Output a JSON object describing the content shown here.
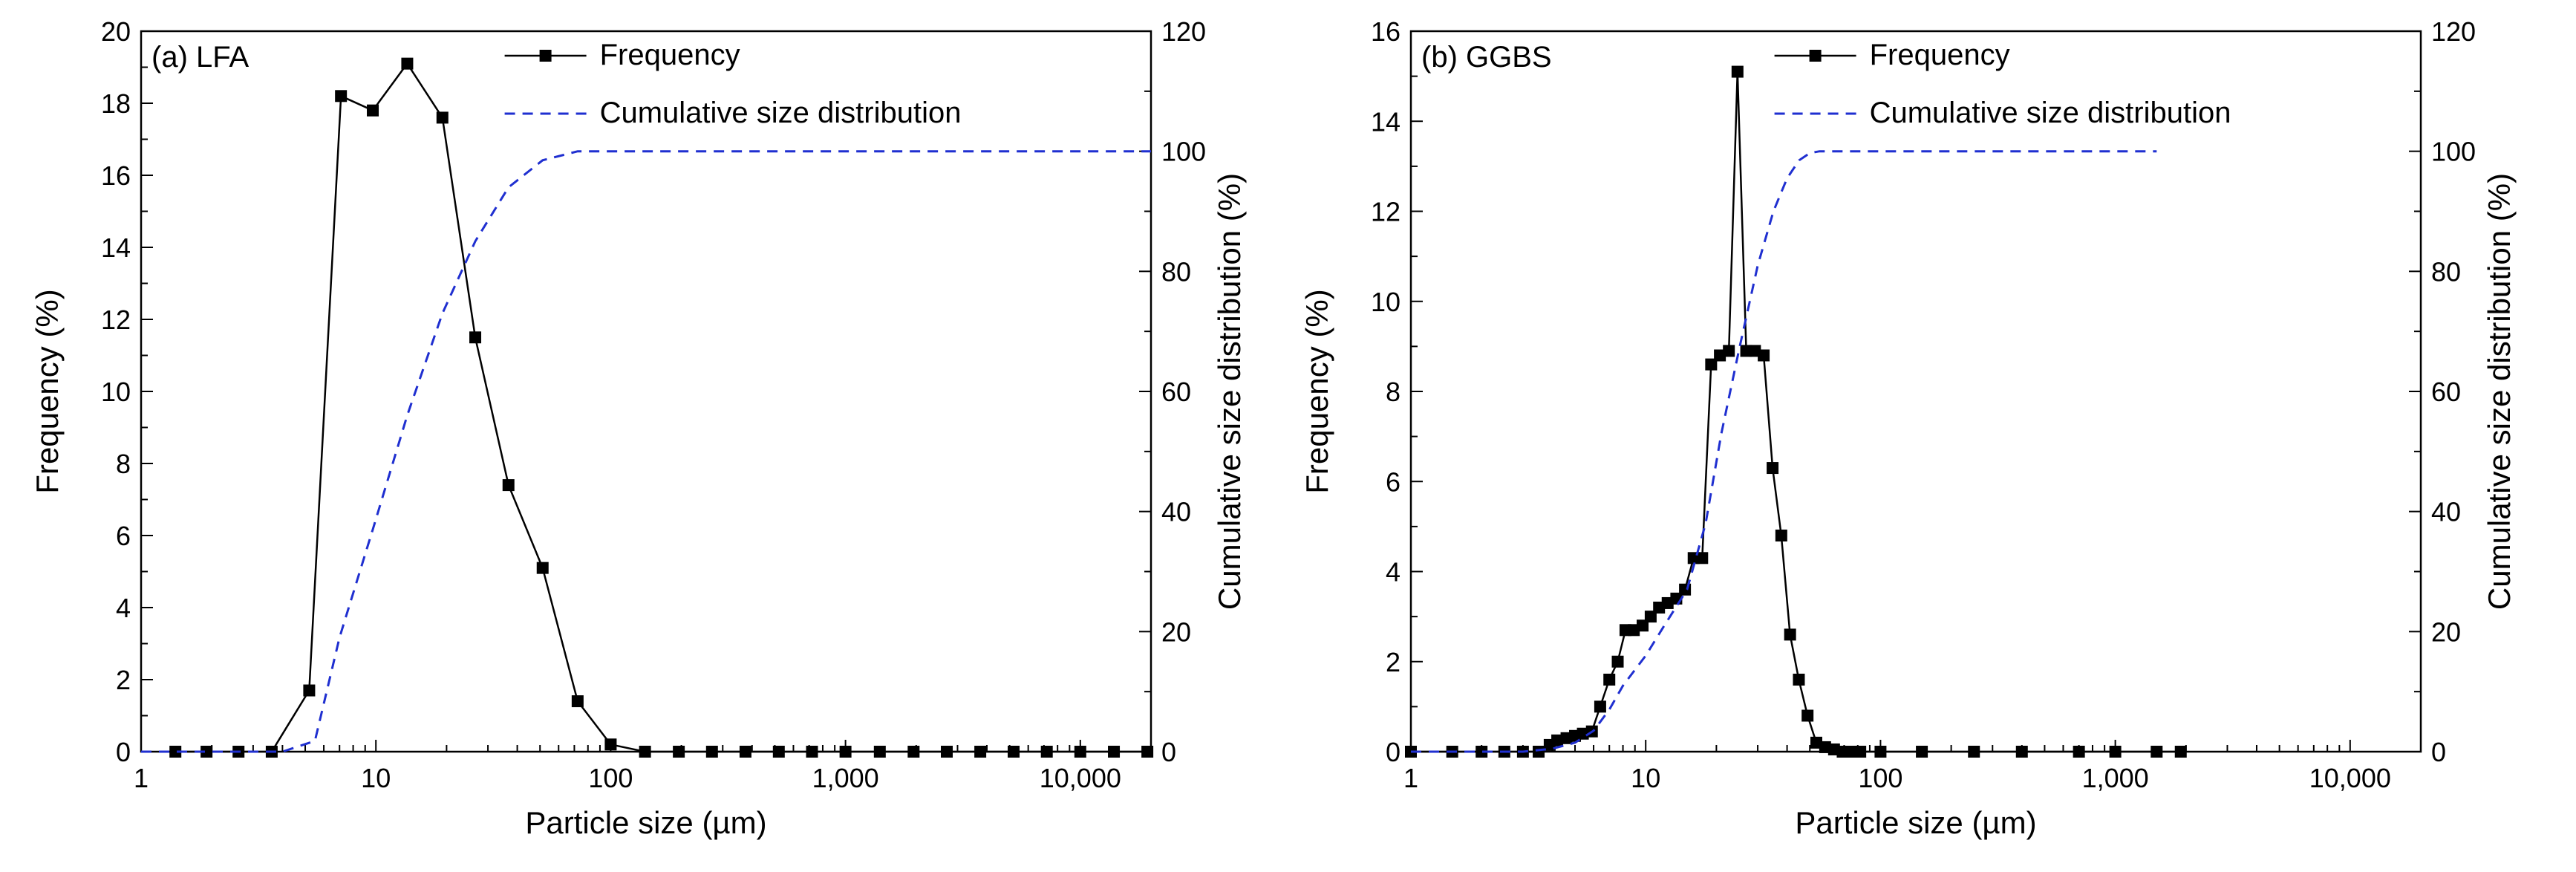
{
  "figure": {
    "panels": [
      "a",
      "b"
    ]
  },
  "chart_data": [
    {
      "type": "line",
      "panel_label": "(a) LFA",
      "xlabel": "Particle size (µm)",
      "ylabel": "Frequency (%)",
      "y2label": "Cumulative size distribution (%)",
      "xscale": "log",
      "xlim": [
        1,
        20000
      ],
      "ylim": [
        0,
        20
      ],
      "y2lim": [
        0,
        120
      ],
      "xticks": [
        1,
        10,
        100,
        1000,
        10000
      ],
      "xtick_labels": [
        "1",
        "10",
        "100",
        "1,000",
        "10,000"
      ],
      "yticks": [
        0,
        2,
        4,
        6,
        8,
        10,
        12,
        14,
        16,
        18,
        20
      ],
      "y2ticks": [
        0,
        20,
        40,
        60,
        80,
        100,
        120
      ],
      "legend": {
        "position": "top",
        "entries": [
          "Frequency",
          "Cumulative size distribution"
        ]
      },
      "series": [
        {
          "name": "Frequency",
          "axis": "left",
          "style": "solid-square-markers",
          "color": "#000000",
          "x": [
            1.4,
            1.9,
            2.6,
            3.6,
            5.2,
            7.1,
            9.7,
            13.6,
            19.2,
            26.5,
            36.7,
            51.3,
            72.3,
            100,
            140,
            195,
            270,
            375,
            520,
            720,
            1000,
            1400,
            1950,
            2700,
            3750,
            5200,
            7200,
            10000,
            13900,
            19300
          ],
          "y": [
            0,
            0,
            0,
            0,
            1.7,
            18.2,
            17.8,
            19.1,
            17.6,
            11.5,
            7.4,
            5.1,
            1.4,
            0.2,
            0,
            0,
            0,
            0,
            0,
            0,
            0,
            0,
            0,
            0,
            0,
            0,
            0,
            0,
            0,
            0
          ]
        },
        {
          "name": "Cumulative size distribution",
          "axis": "right",
          "style": "dashed",
          "color": "#1f2fd0",
          "x": [
            1,
            4,
            5.5,
            7,
            9.7,
            13.6,
            19.2,
            26.5,
            36.7,
            51.3,
            72.3,
            100,
            1000,
            10000,
            20000
          ],
          "y": [
            0,
            0,
            1.8,
            19,
            37,
            56,
            73,
            85,
            94,
            98.5,
            100,
            100,
            100,
            100,
            100
          ]
        }
      ]
    },
    {
      "type": "line",
      "panel_label": "(b) GGBS",
      "xlabel": "Particle size (µm)",
      "ylabel": "Frequency (%)",
      "y2label": "Cumulative size distribution (%)",
      "xscale": "log",
      "xlim": [
        1,
        20000
      ],
      "ylim": [
        0,
        16
      ],
      "y2lim": [
        0,
        120
      ],
      "xticks": [
        1,
        10,
        100,
        1000,
        10000
      ],
      "xtick_labels": [
        "1",
        "10",
        "100",
        "1,000",
        "10,000"
      ],
      "yticks": [
        0,
        2,
        4,
        6,
        8,
        10,
        12,
        14,
        16
      ],
      "y2ticks": [
        0,
        20,
        40,
        60,
        80,
        100,
        120
      ],
      "legend": {
        "position": "top",
        "entries": [
          "Frequency",
          "Cumulative size distribution"
        ]
      },
      "series": [
        {
          "name": "Frequency",
          "axis": "left",
          "style": "solid-square-markers",
          "color": "#000000",
          "x": [
            1,
            1.5,
            2,
            2.5,
            3,
            3.5,
            3.9,
            4.2,
            4.6,
            5,
            5.4,
            5.9,
            6.4,
            7,
            7.6,
            8.2,
            8.9,
            9.7,
            10.5,
            11.4,
            12.4,
            13.5,
            14.7,
            16,
            17.4,
            19,
            20.7,
            22.6,
            24.6,
            26.8,
            29.2,
            31.8,
            34.7,
            37.8,
            41.2,
            44.9,
            48.9,
            53.3,
            58.1,
            63.4,
            69,
            75,
            82,
            100,
            150,
            250,
            400,
            700,
            1000,
            1500,
            1900
          ],
          "y": [
            0,
            0,
            0,
            0,
            0,
            0,
            0.15,
            0.25,
            0.3,
            0.35,
            0.4,
            0.45,
            1,
            1.6,
            2.0,
            2.7,
            2.7,
            2.8,
            3.0,
            3.2,
            3.3,
            3.4,
            3.6,
            4.3,
            4.3,
            8.6,
            8.8,
            8.9,
            15.1,
            8.9,
            8.9,
            8.8,
            6.3,
            4.8,
            2.6,
            1.6,
            0.8,
            0.2,
            0.1,
            0.05,
            0,
            0,
            0,
            0,
            0,
            0,
            0,
            0,
            0,
            0,
            0
          ]
        },
        {
          "name": "Cumulative size distribution",
          "axis": "right",
          "style": "dashed",
          "color": "#1f2fd0",
          "x": [
            1,
            3,
            4,
            5,
            6,
            7,
            8,
            10,
            12,
            15,
            18,
            21,
            25,
            30,
            35,
            40,
            45,
            50,
            55,
            60,
            100,
            500,
            1500
          ],
          "y": [
            0,
            0,
            0.5,
            1.5,
            3.5,
            7,
            11,
            16,
            21,
            27,
            38,
            53,
            67,
            81,
            90,
            95.5,
            98.5,
            99.7,
            100,
            100,
            100,
            100,
            100
          ]
        }
      ]
    }
  ]
}
